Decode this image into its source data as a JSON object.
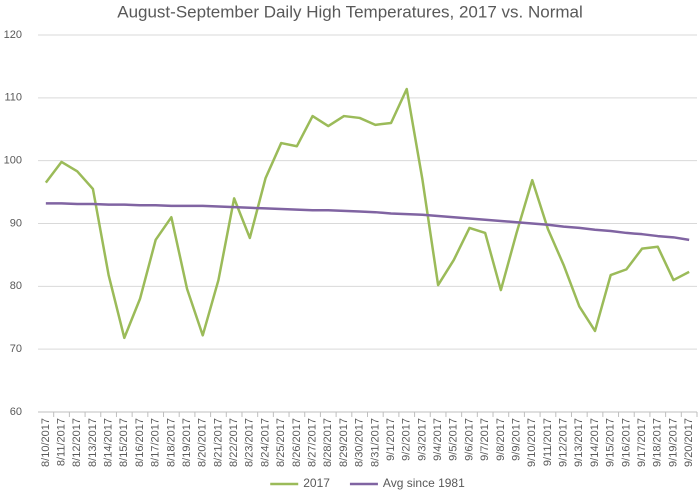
{
  "chart_data": {
    "type": "line",
    "title": "August-September Daily High Temperatures, 2017 vs. Normal",
    "categories": [
      "8/10/2017",
      "8/11/2017",
      "8/12/2017",
      "8/13/2017",
      "8/14/2017",
      "8/15/2017",
      "8/16/2017",
      "8/17/2017",
      "8/18/2017",
      "8/19/2017",
      "8/20/2017",
      "8/21/2017",
      "8/22/2017",
      "8/23/2017",
      "8/24/2017",
      "8/25/2017",
      "8/26/2017",
      "8/27/2017",
      "8/28/2017",
      "8/29/2017",
      "8/30/2017",
      "8/31/2017",
      "9/1/2017",
      "9/2/2017",
      "9/3/2017",
      "9/4/2017",
      "9/5/2017",
      "9/6/2017",
      "9/7/2017",
      "9/8/2017",
      "9/9/2017",
      "9/10/2017",
      "9/11/2017",
      "9/12/2017",
      "9/13/2017",
      "9/14/2017",
      "9/15/2017",
      "9/16/2017",
      "9/17/2017",
      "9/18/2017",
      "9/19/2017",
      "9/20/2017"
    ],
    "series": [
      {
        "name": "2017",
        "color": "#9bbb59",
        "values": [
          96.5,
          99.8,
          98.3,
          95.5,
          81.8,
          71.8,
          78,
          87.4,
          91,
          79.6,
          72.2,
          81,
          94,
          87.7,
          97.2,
          102.8,
          102.3,
          107.1,
          105.5,
          107.1,
          106.8,
          105.7,
          106,
          111.4,
          97,
          80.2,
          84.2,
          89.3,
          88.5,
          79.4,
          88.5,
          96.9,
          89.1,
          83.4,
          76.8,
          72.9,
          81.8,
          82.7,
          86,
          86.3,
          81,
          82.3
        ]
      },
      {
        "name": "Avg since 1981",
        "color": "#8064a2",
        "values": [
          93.2,
          93.2,
          93.1,
          93.1,
          93.0,
          93.0,
          92.9,
          92.9,
          92.8,
          92.8,
          92.8,
          92.7,
          92.6,
          92.5,
          92.4,
          92.3,
          92.2,
          92.1,
          92.1,
          92.0,
          91.9,
          91.8,
          91.6,
          91.5,
          91.4,
          91.2,
          91.0,
          90.8,
          90.6,
          90.4,
          90.2,
          90.0,
          89.8,
          89.5,
          89.3,
          89.0,
          88.8,
          88.5,
          88.3,
          88.0,
          87.8,
          87.4
        ]
      }
    ],
    "ylim": [
      60,
      120
    ],
    "yticks": [
      60,
      70,
      80,
      90,
      100,
      110,
      120
    ],
    "grid": true,
    "legend": "bottom"
  }
}
